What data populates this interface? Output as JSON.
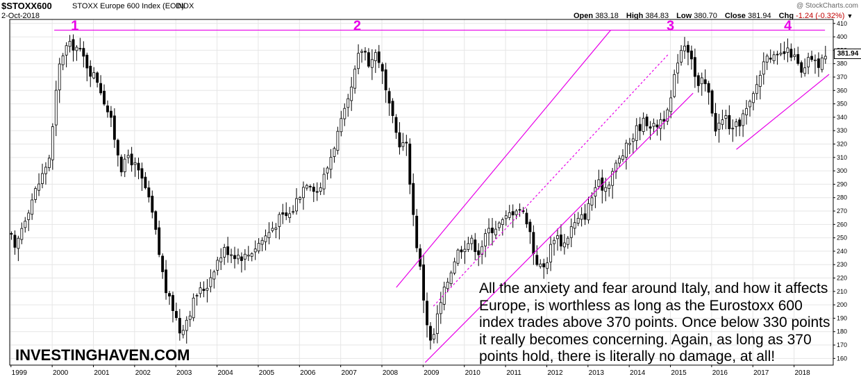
{
  "header": {
    "symbol": "$STOXX600",
    "index_name": "STOXX Europe 600 Index (EOD)",
    "index_type": "INDX",
    "date": "2-Oct-2018",
    "credit": "@ StockCharts.com",
    "ohlc": {
      "open_label": "Open",
      "open": "383.18",
      "high_label": "High",
      "high": "384.83",
      "low_label": "Low",
      "low": "380.70",
      "close_label": "Close",
      "close": "381.94",
      "chg_label": "Chg",
      "chg": "-1.24 (-0.32%)",
      "dropdown_icon": "triangle-down-icon"
    },
    "last_value_badge": "381.94"
  },
  "brand": "INVESTINGHAVEN.COM",
  "annotation_text": "All the anxiety and fear around Italy, and how it affects Europe, is worthless as long as the Eurostoxx 600 index trades above 370 points. Once below 330 points it really becomes concerning. Again, as long as 370 points hold, there is literally no damage, at all!",
  "colors": {
    "line_annotation": "#e800e8",
    "up_candle": "#ffffff",
    "down_candle": "#000000",
    "grid": "#e6e6e6"
  },
  "chart_data": {
    "type": "candlestick",
    "period": "monthly",
    "ylim": [
      155,
      413
    ],
    "y_ticks": [
      160,
      170,
      180,
      190,
      200,
      210,
      220,
      230,
      240,
      250,
      260,
      270,
      280,
      290,
      300,
      310,
      320,
      330,
      340,
      350,
      360,
      370,
      380,
      390,
      400,
      410
    ],
    "x_ticks": [
      "1999",
      "2000",
      "2001",
      "2002",
      "2003",
      "2004",
      "2005",
      "2006",
      "2007",
      "2008",
      "2009",
      "2010",
      "2011",
      "2012",
      "2013",
      "2014",
      "2015",
      "2016",
      "2017",
      "2018"
    ],
    "x_tick_years": [
      1999,
      2000,
      2001,
      2002,
      2003,
      2004,
      2005,
      2006,
      2007,
      2008,
      2009,
      2010,
      2011,
      2012,
      2013,
      2014,
      2015,
      2016,
      2017,
      2018
    ],
    "xlim": [
      1998.97,
      2018.95
    ],
    "close_keypoints": [
      [
        1999.0,
        252
      ],
      [
        1999.08,
        238
      ],
      [
        1999.3,
        262
      ],
      [
        1999.55,
        282
      ],
      [
        1999.75,
        296
      ],
      [
        1999.95,
        312
      ],
      [
        2000.15,
        375
      ],
      [
        2000.3,
        392
      ],
      [
        2000.55,
        394
      ],
      [
        2000.75,
        385
      ],
      [
        2000.95,
        373
      ],
      [
        2001.1,
        368
      ],
      [
        2001.4,
        340
      ],
      [
        2001.7,
        300
      ],
      [
        2001.85,
        312
      ],
      [
        2002.0,
        304
      ],
      [
        2002.25,
        288
      ],
      [
        2002.45,
        265
      ],
      [
        2002.65,
        228
      ],
      [
        2002.8,
        205
      ],
      [
        2002.95,
        197
      ],
      [
        2003.1,
        180
      ],
      [
        2003.3,
        192
      ],
      [
        2003.5,
        208
      ],
      [
        2003.75,
        214
      ],
      [
        2003.95,
        230
      ],
      [
        2004.2,
        242
      ],
      [
        2004.4,
        238
      ],
      [
        2004.7,
        236
      ],
      [
        2004.95,
        244
      ],
      [
        2005.2,
        252
      ],
      [
        2005.5,
        264
      ],
      [
        2005.8,
        268
      ],
      [
        2005.95,
        280
      ],
      [
        2006.2,
        294
      ],
      [
        2006.45,
        284
      ],
      [
        2006.65,
        300
      ],
      [
        2006.95,
        330
      ],
      [
        2007.2,
        352
      ],
      [
        2007.45,
        388
      ],
      [
        2007.55,
        392
      ],
      [
        2007.7,
        380
      ],
      [
        2007.85,
        388
      ],
      [
        2007.95,
        382
      ],
      [
        2008.15,
        350
      ],
      [
        2008.4,
        322
      ],
      [
        2008.6,
        318
      ],
      [
        2008.8,
        255
      ],
      [
        2008.95,
        222
      ],
      [
        2009.05,
        195
      ],
      [
        2009.2,
        168
      ],
      [
        2009.35,
        192
      ],
      [
        2009.55,
        214
      ],
      [
        2009.8,
        238
      ],
      [
        2009.95,
        244
      ],
      [
        2010.15,
        248
      ],
      [
        2010.35,
        240
      ],
      [
        2010.6,
        256
      ],
      [
        2010.95,
        262
      ],
      [
        2011.1,
        268
      ],
      [
        2011.3,
        274
      ],
      [
        2011.55,
        262
      ],
      [
        2011.7,
        236
      ],
      [
        2011.85,
        228
      ],
      [
        2011.95,
        228
      ],
      [
        2012.2,
        254
      ],
      [
        2012.4,
        244
      ],
      [
        2012.6,
        258
      ],
      [
        2012.95,
        268
      ],
      [
        2013.2,
        290
      ],
      [
        2013.45,
        288
      ],
      [
        2013.6,
        300
      ],
      [
        2013.95,
        318
      ],
      [
        2014.2,
        332
      ],
      [
        2014.4,
        338
      ],
      [
        2014.6,
        332
      ],
      [
        2014.8,
        340
      ],
      [
        2014.95,
        342
      ],
      [
        2015.2,
        388
      ],
      [
        2015.35,
        396
      ],
      [
        2015.5,
        388
      ],
      [
        2015.65,
        360
      ],
      [
        2015.8,
        368
      ],
      [
        2015.95,
        355
      ],
      [
        2016.1,
        332
      ],
      [
        2016.35,
        340
      ],
      [
        2016.5,
        328
      ],
      [
        2016.7,
        338
      ],
      [
        2016.95,
        350
      ],
      [
        2017.15,
        370
      ],
      [
        2017.35,
        390
      ],
      [
        2017.55,
        382
      ],
      [
        2017.75,
        388
      ],
      [
        2017.95,
        388
      ],
      [
        2018.1,
        378
      ],
      [
        2018.2,
        370
      ],
      [
        2018.4,
        386
      ],
      [
        2018.55,
        378
      ],
      [
        2018.7,
        385
      ],
      [
        2018.8,
        382
      ]
    ],
    "trend_lines": {
      "resistance": [
        [
          2000.05,
          405
        ],
        [
          2018.75,
          405
        ]
      ],
      "upper_channel": [
        [
          2008.35,
          213
        ],
        [
          2013.55,
          405
        ]
      ],
      "middle_channel_dotted": [
        [
          2009.25,
          199
        ],
        [
          2014.95,
          387
        ]
      ],
      "lower_channel": [
        [
          2009.05,
          157
        ],
        [
          2015.55,
          358
        ]
      ],
      "rising_support": [
        [
          2016.6,
          316
        ],
        [
          2018.85,
          372
        ]
      ]
    },
    "peak_labels": [
      {
        "text": "1",
        "x": 2000.55,
        "y": 409
      },
      {
        "text": "2",
        "x": 2007.4,
        "y": 409
      },
      {
        "text": "3",
        "x": 2015.0,
        "y": 409
      },
      {
        "text": "4",
        "x": 2017.85,
        "y": 409
      }
    ]
  }
}
